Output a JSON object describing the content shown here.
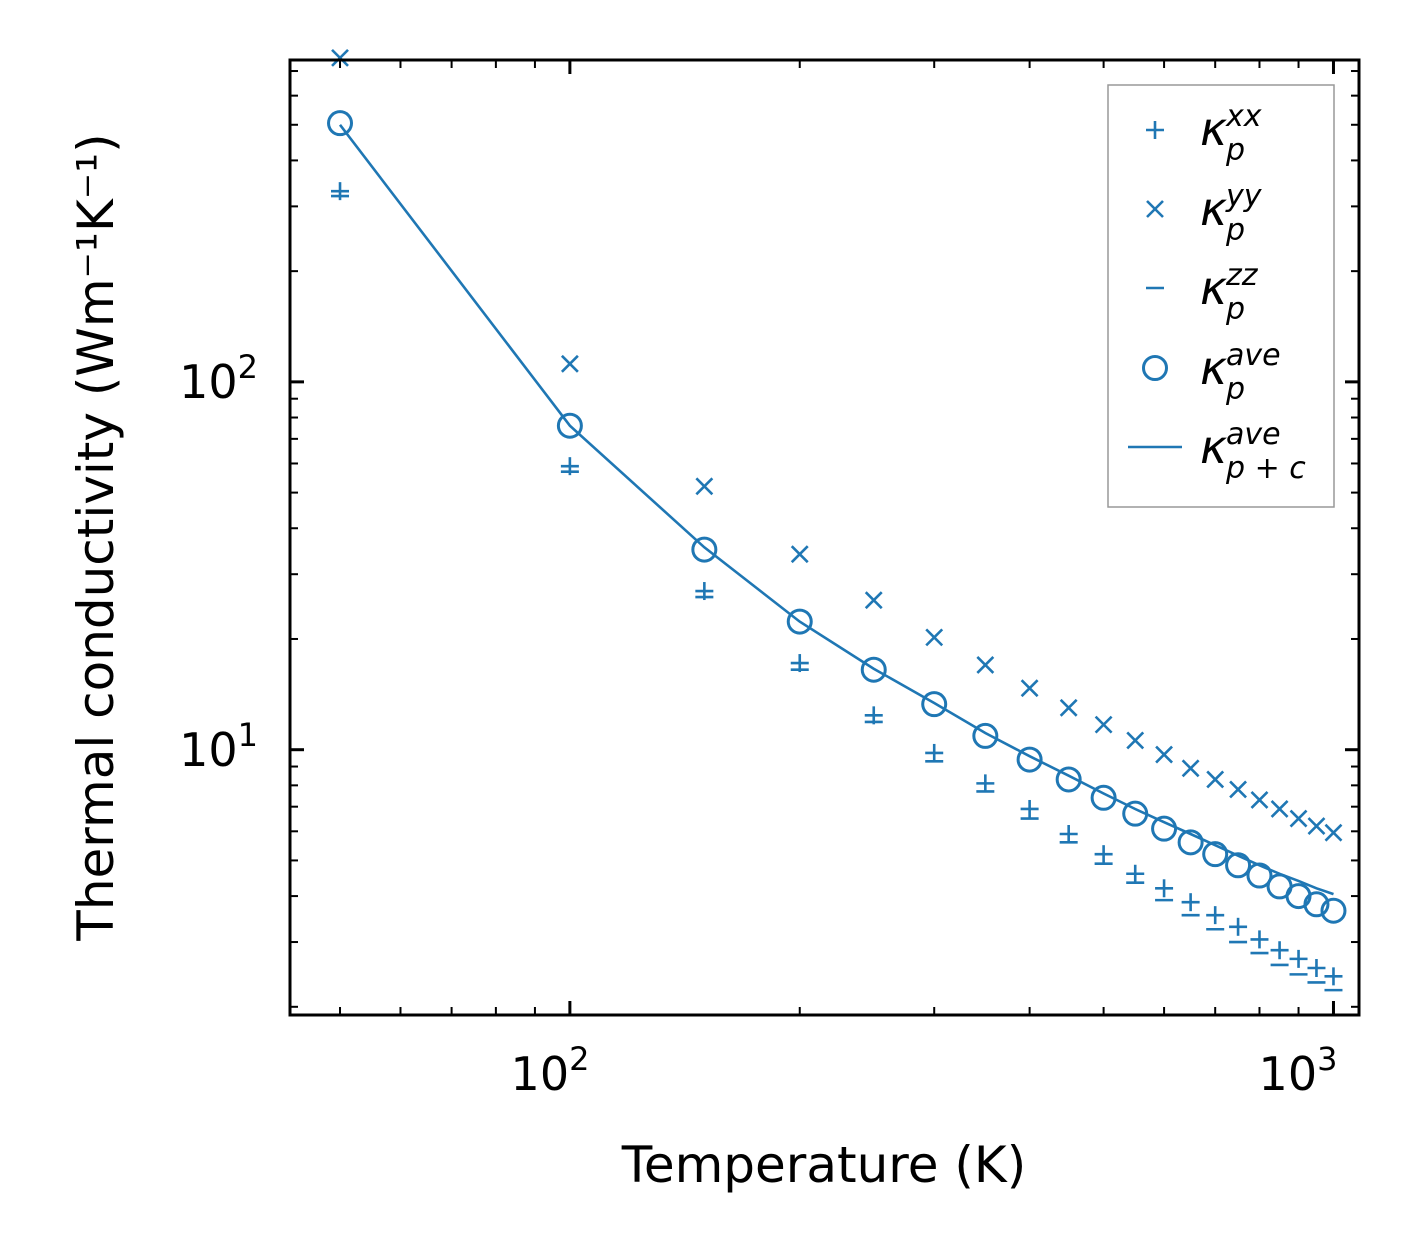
{
  "chart_data": {
    "type": "scatter",
    "xscale": "log",
    "yscale": "log",
    "xlabel": "Temperature (K)",
    "ylabel": "Thermal conductivity (Wm⁻¹K⁻¹)",
    "xlim": [
      43,
      1080
    ],
    "ylim": [
      1.9,
      750
    ],
    "x_ticks": [
      {
        "base": "10",
        "exp": "2"
      },
      {
        "base": "10",
        "exp": "3"
      }
    ],
    "y_ticks": [
      {
        "base": "10",
        "exp": "1"
      },
      {
        "base": "10",
        "exp": "2"
      }
    ],
    "color": "#1f77b4",
    "legend_position": "upper right",
    "x": [
      50,
      100,
      150,
      200,
      250,
      300,
      350,
      400,
      450,
      500,
      550,
      600,
      650,
      700,
      750,
      800,
      850,
      900,
      950,
      1000
    ],
    "series": [
      {
        "name": "kxx",
        "label_base": "κ",
        "label_sup": "xx",
        "label_sub": "p",
        "marker": "plus",
        "values": [
          330,
          59,
          27,
          17.2,
          12.4,
          9.8,
          8.1,
          6.9,
          5.9,
          5.2,
          4.6,
          4.2,
          3.85,
          3.55,
          3.3,
          3.05,
          2.85,
          2.7,
          2.55,
          2.42
        ]
      },
      {
        "name": "kyy",
        "label_base": "κ",
        "label_sup": "yy",
        "label_sub": "p",
        "marker": "x",
        "values": [
          760,
          112,
          52,
          34,
          25.5,
          20.2,
          17,
          14.7,
          13,
          11.7,
          10.6,
          9.7,
          8.9,
          8.3,
          7.8,
          7.3,
          6.9,
          6.5,
          6.2,
          5.95
        ]
      },
      {
        "name": "kzz",
        "label_base": "κ",
        "label_sup": "zz",
        "label_sub": "p",
        "marker": "hline",
        "values": [
          320,
          57,
          26,
          16.5,
          11.9,
          9.3,
          7.7,
          6.5,
          5.6,
          4.9,
          4.35,
          3.9,
          3.55,
          3.25,
          3.0,
          2.8,
          2.6,
          2.45,
          2.33,
          2.22
        ]
      },
      {
        "name": "kave",
        "label_base": "κ",
        "label_sup": "ave",
        "label_sub": "p",
        "marker": "circle",
        "values": [
          505,
          76,
          35,
          22.3,
          16.5,
          13.3,
          10.9,
          9.4,
          8.3,
          7.4,
          6.7,
          6.1,
          5.6,
          5.2,
          4.85,
          4.55,
          4.25,
          4.0,
          3.8,
          3.65
        ]
      },
      {
        "name": "kave_pc",
        "label_base": "κ",
        "label_sup": "ave",
        "label_sub": "p + c",
        "marker": "line",
        "values": [
          500,
          76,
          35.5,
          22.3,
          16.6,
          13.4,
          11.1,
          9.6,
          8.5,
          7.6,
          6.9,
          6.35,
          5.9,
          5.5,
          5.15,
          4.85,
          4.6,
          4.4,
          4.2,
          4.05
        ]
      }
    ]
  }
}
